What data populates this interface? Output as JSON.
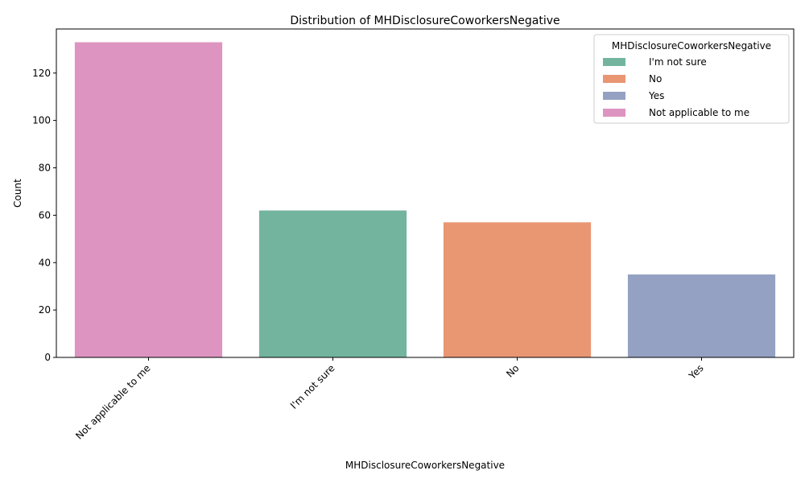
{
  "chart_data": {
    "type": "bar",
    "title": "Distribution of MHDisclosureCoworkersNegative",
    "xlabel": "MHDisclosureCoworkersNegative",
    "ylabel": "Count",
    "categories": [
      "Not applicable to me",
      "I'm not sure",
      "No",
      "Yes"
    ],
    "values": [
      133,
      62,
      57,
      35
    ],
    "colors": [
      "#dd94c0",
      "#73b49f",
      "#e99673",
      "#94a1c2"
    ],
    "ylim": [
      0,
      138.6
    ],
    "yticks": [
      0,
      20,
      40,
      60,
      80,
      100,
      120
    ],
    "grid": false,
    "legend": {
      "title": "MHDisclosureCoworkersNegative",
      "placement": "top-right",
      "items": [
        {
          "label": "I'm not sure",
          "color": "#73b49f"
        },
        {
          "label": "No",
          "color": "#e99673"
        },
        {
          "label": "Yes",
          "color": "#94a1c2"
        },
        {
          "label": "Not applicable to me",
          "color": "#dd94c0"
        }
      ]
    }
  }
}
